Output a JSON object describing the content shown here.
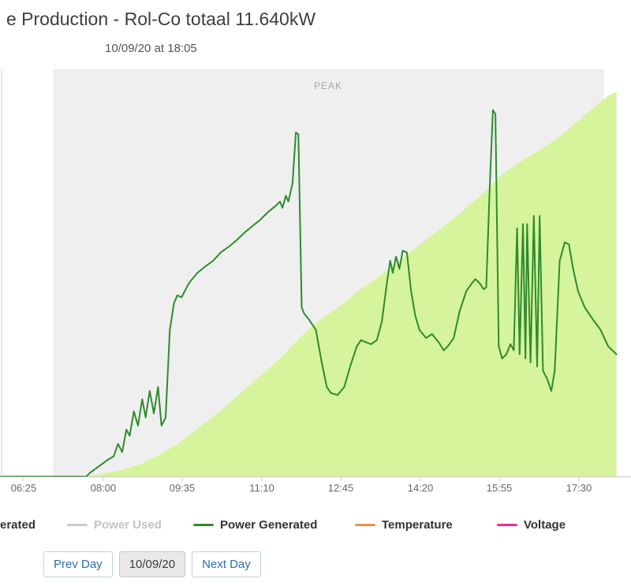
{
  "header": {
    "title": "e Production - Rol-Co totaal 11.640kW",
    "subtitle": "10/09/20 at 18:05"
  },
  "chart_data": {
    "type": "area",
    "title": "e Production - Rol-Co totaal 11.640kW",
    "subtitle": "10/09/20 at 18:05",
    "y_axis_visible": false,
    "y_unit": "percent_of_plot_height",
    "x_range": [
      "05:55",
      "18:20"
    ],
    "x_ticks": [
      "06:25",
      "08:00",
      "09:35",
      "11:10",
      "12:45",
      "14:20",
      "15:55",
      "17:30"
    ],
    "peak_band": {
      "label": "PEAK",
      "start": "07:00",
      "end": "18:00",
      "color": "#efefef"
    },
    "series": [
      {
        "name": "Energy Generated",
        "type": "area",
        "color": "#d6f49c",
        "points": [
          [
            "05:55",
            0
          ],
          [
            "07:00",
            0
          ],
          [
            "07:40",
            0
          ],
          [
            "07:55",
            0.5
          ],
          [
            "08:20",
            1.5
          ],
          [
            "08:45",
            3
          ],
          [
            "09:05",
            5
          ],
          [
            "09:30",
            8
          ],
          [
            "09:55",
            12
          ],
          [
            "10:20",
            16
          ],
          [
            "10:45",
            20.5
          ],
          [
            "11:10",
            25
          ],
          [
            "11:35",
            29.5
          ],
          [
            "11:55",
            34
          ],
          [
            "12:20",
            38.5
          ],
          [
            "12:45",
            42
          ],
          [
            "13:05",
            45.5
          ],
          [
            "13:30",
            49
          ],
          [
            "13:55",
            53
          ],
          [
            "14:20",
            57
          ],
          [
            "14:45",
            61
          ],
          [
            "15:10",
            65
          ],
          [
            "15:35",
            69.5
          ],
          [
            "16:00",
            74.5
          ],
          [
            "16:25",
            78
          ],
          [
            "16:50",
            81
          ],
          [
            "17:10",
            84
          ],
          [
            "17:30",
            87.5
          ],
          [
            "17:50",
            91
          ],
          [
            "18:05",
            93.5
          ],
          [
            "18:15",
            94.5
          ]
        ]
      },
      {
        "name": "Power Generated",
        "type": "line",
        "color": "#2e8b2e",
        "points": [
          [
            "05:55",
            0
          ],
          [
            "06:30",
            0
          ],
          [
            "07:00",
            0
          ],
          [
            "07:30",
            0
          ],
          [
            "07:40",
            0
          ],
          [
            "07:45",
            1
          ],
          [
            "07:55",
            2.5
          ],
          [
            "08:05",
            4
          ],
          [
            "08:13",
            5
          ],
          [
            "08:18",
            8
          ],
          [
            "08:23",
            6
          ],
          [
            "08:28",
            11.5
          ],
          [
            "08:32",
            10
          ],
          [
            "08:37",
            16
          ],
          [
            "08:42",
            12.5
          ],
          [
            "08:47",
            19
          ],
          [
            "08:51",
            14.5
          ],
          [
            "08:56",
            21
          ],
          [
            "09:01",
            15.5
          ],
          [
            "09:06",
            22
          ],
          [
            "09:10",
            12.5
          ],
          [
            "09:15",
            14.5
          ],
          [
            "09:20",
            36
          ],
          [
            "09:25",
            42.5
          ],
          [
            "09:29",
            44.5
          ],
          [
            "09:34",
            44
          ],
          [
            "09:43",
            47.5
          ],
          [
            "09:53",
            50
          ],
          [
            "10:02",
            51.5
          ],
          [
            "10:12",
            53
          ],
          [
            "10:21",
            55
          ],
          [
            "10:31",
            56.5
          ],
          [
            "10:40",
            58
          ],
          [
            "10:50",
            60
          ],
          [
            "10:59",
            61.5
          ],
          [
            "11:08",
            63
          ],
          [
            "11:18",
            65
          ],
          [
            "11:27",
            66.5
          ],
          [
            "11:32",
            67.5
          ],
          [
            "11:35",
            66
          ],
          [
            "11:39",
            69
          ],
          [
            "11:42",
            67.5
          ],
          [
            "11:47",
            72
          ],
          [
            "11:51",
            84.5
          ],
          [
            "11:54",
            84
          ],
          [
            "11:58",
            41.5
          ],
          [
            "12:01",
            40
          ],
          [
            "12:07",
            38.5
          ],
          [
            "12:15",
            36
          ],
          [
            "12:22",
            28
          ],
          [
            "12:28",
            22
          ],
          [
            "12:33",
            20.5
          ],
          [
            "12:41",
            20
          ],
          [
            "12:49",
            22
          ],
          [
            "12:56",
            27
          ],
          [
            "13:04",
            32
          ],
          [
            "13:09",
            33.5
          ],
          [
            "13:15",
            33
          ],
          [
            "13:21",
            32.5
          ],
          [
            "13:28",
            33.5
          ],
          [
            "13:34",
            38
          ],
          [
            "13:40",
            47.5
          ],
          [
            "13:44",
            53
          ],
          [
            "13:47",
            50
          ],
          [
            "13:51",
            54
          ],
          [
            "13:55",
            51
          ],
          [
            "13:59",
            55.5
          ],
          [
            "14:04",
            55
          ],
          [
            "14:09",
            45.5
          ],
          [
            "14:14",
            39.5
          ],
          [
            "14:19",
            36
          ],
          [
            "14:27",
            34
          ],
          [
            "14:34",
            35
          ],
          [
            "14:42",
            33
          ],
          [
            "14:48",
            31
          ],
          [
            "14:53",
            32
          ],
          [
            "15:00",
            34
          ],
          [
            "15:07",
            40.5
          ],
          [
            "15:15",
            45.5
          ],
          [
            "15:22",
            47.5
          ],
          [
            "15:26",
            48.5
          ],
          [
            "15:31",
            47.5
          ],
          [
            "15:36",
            46
          ],
          [
            "15:39",
            46.5
          ],
          [
            "15:43",
            70
          ],
          [
            "15:47",
            90
          ],
          [
            "15:50",
            89
          ],
          [
            "15:54",
            32
          ],
          [
            "15:58",
            29
          ],
          [
            "16:03",
            30
          ],
          [
            "16:08",
            32.5
          ],
          [
            "16:12",
            31
          ],
          [
            "16:16",
            61
          ],
          [
            "16:19",
            30
          ],
          [
            "16:23",
            62
          ],
          [
            "16:26",
            29
          ],
          [
            "16:28",
            62
          ],
          [
            "16:32",
            28
          ],
          [
            "16:36",
            64
          ],
          [
            "16:40",
            27
          ],
          [
            "16:43",
            64
          ],
          [
            "16:47",
            26
          ],
          [
            "16:52",
            24
          ],
          [
            "16:57",
            21
          ],
          [
            "17:01",
            26
          ],
          [
            "17:07",
            53
          ],
          [
            "17:13",
            57.5
          ],
          [
            "17:18",
            57
          ],
          [
            "17:23",
            51
          ],
          [
            "17:29",
            45.5
          ],
          [
            "17:37",
            41.5
          ],
          [
            "17:47",
            38.5
          ],
          [
            "17:56",
            36
          ],
          [
            "18:05",
            32
          ],
          [
            "18:15",
            30
          ]
        ]
      }
    ]
  },
  "legend": {
    "items": [
      {
        "label": "erated",
        "color": "#2e8b2e",
        "disabled": false,
        "marker": false
      },
      {
        "label": "Power Used",
        "color": "#cccccc",
        "disabled": true,
        "marker": true
      },
      {
        "label": "Power Generated",
        "color": "#2e8b2e",
        "disabled": false,
        "marker": true
      },
      {
        "label": "Temperature",
        "color": "#f28f43",
        "disabled": false,
        "marker": true
      },
      {
        "label": "Voltage",
        "color": "#ef2a92",
        "disabled": false,
        "marker": true
      }
    ]
  },
  "nav": {
    "prev_label": "Prev Day",
    "date_label": "10/09/20",
    "next_label": "Next Day"
  },
  "colors": {
    "title_text": "#3f3f3f",
    "subtitle_text": "#555555",
    "axis_line": "#cccccc",
    "tick_text": "#666666",
    "peak_text": "#a6a6a6",
    "legend_disabled_text": "#c3c3c3",
    "nav_button_text": "#2a6db3"
  }
}
